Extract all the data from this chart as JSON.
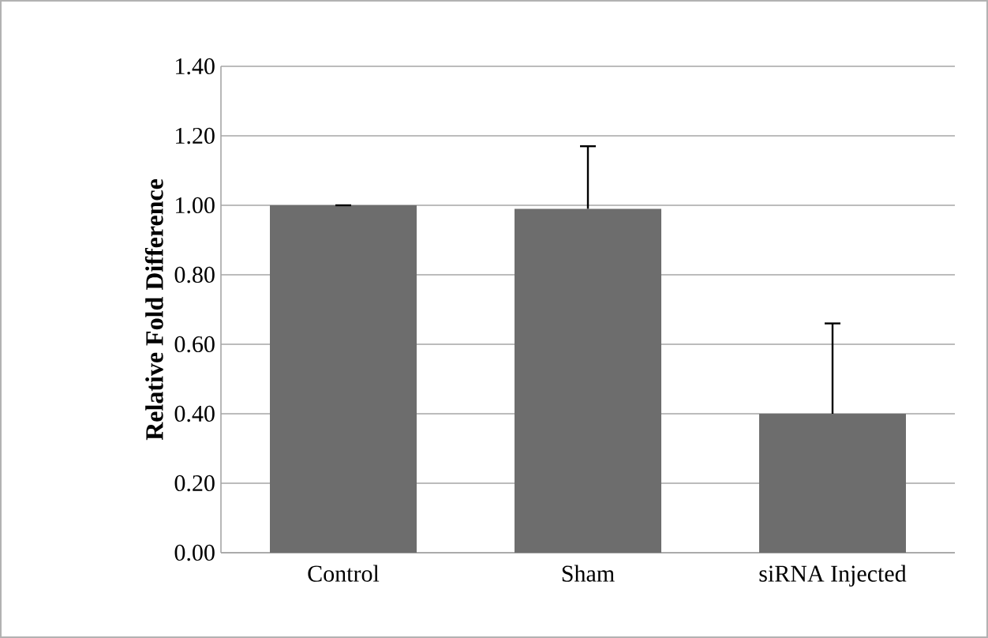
{
  "chart_data": {
    "type": "bar",
    "ylabel": "Relative Fold Difference",
    "categories": [
      "Control",
      "Sham",
      "siRNA Injected"
    ],
    "values": [
      1.0,
      0.99,
      0.4
    ],
    "errors": [
      [
        1.0,
        1.0
      ],
      [
        0.99,
        1.17
      ],
      [
        0.4,
        0.66
      ]
    ],
    "color": "#6d6d6d",
    "ylim": [
      0,
      1.4
    ],
    "yticks": [
      {
        "value": 0,
        "label": "0.00"
      },
      {
        "value": 0.2,
        "label": "0.20"
      },
      {
        "value": 0.4,
        "label": "0.40"
      },
      {
        "value": 0.6,
        "label": "0.60"
      },
      {
        "value": 0.8,
        "label": "0.80"
      },
      {
        "value": 1.0,
        "label": "1.00"
      },
      {
        "value": 1.2,
        "label": "1.20"
      },
      {
        "value": 1.4,
        "label": "1.40"
      }
    ],
    "grid": "y"
  }
}
